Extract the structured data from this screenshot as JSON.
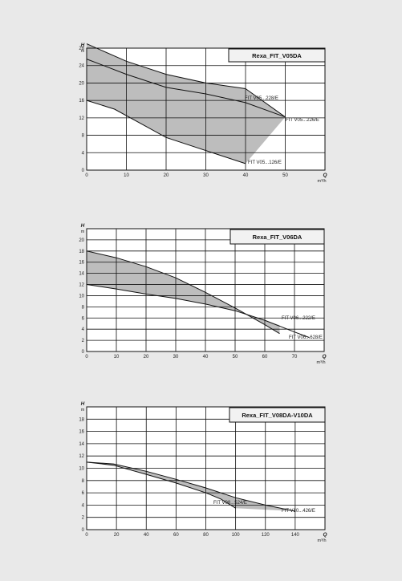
{
  "chart_data": [
    {
      "type": "area",
      "title": "Rexa_FIT_V05DA",
      "ylabel": "H",
      "yunit": "m",
      "xlabel": "Q",
      "xunit": "m³/h",
      "xlim": [
        0,
        60
      ],
      "ylim": [
        0,
        28
      ],
      "xticks": [
        0,
        10,
        20,
        30,
        40,
        50
      ],
      "yticks": [
        0,
        4,
        8,
        12,
        16,
        20,
        24,
        28
      ],
      "grid": true,
      "band": {
        "upper": [
          [
            0,
            29
          ],
          [
            10,
            25
          ],
          [
            20,
            22
          ],
          [
            30,
            20
          ],
          [
            40,
            18.7
          ]
        ],
        "upper_tail": [
          [
            40,
            18.7
          ],
          [
            50,
            12.2
          ]
        ],
        "lower": [
          [
            0,
            16
          ],
          [
            7,
            14
          ],
          [
            15,
            10
          ],
          [
            20,
            7.5
          ],
          [
            30,
            4.5
          ],
          [
            40,
            1.5
          ],
          [
            50,
            12.2
          ]
        ]
      },
      "series": [
        {
          "name": "FIT V05...228/E",
          "values": [
            [
              0,
              29
            ],
            [
              10,
              25
            ],
            [
              20,
              22
            ],
            [
              30,
              20
            ],
            [
              40,
              18.7
            ]
          ]
        },
        {
          "name": "FIT V05...226/E",
          "values": [
            [
              0,
              25.5
            ],
            [
              10,
              22
            ],
            [
              20,
              19
            ],
            [
              30,
              17.5
            ],
            [
              40,
              15.5
            ],
            [
              50,
              12.2
            ]
          ]
        },
        {
          "name": "FIT V05...126/E",
          "values": [
            [
              0,
              16
            ],
            [
              7,
              14
            ],
            [
              15,
              10
            ],
            [
              20,
              7.5
            ],
            [
              30,
              4.5
            ],
            [
              40,
              1.5
            ]
          ]
        }
      ]
    },
    {
      "type": "area",
      "title": "Rexa_FIT_V06DA",
      "ylabel": "H",
      "yunit": "m",
      "xlabel": "Q",
      "xunit": "m³/h",
      "xlim": [
        0,
        80
      ],
      "ylim": [
        0,
        22
      ],
      "xticks": [
        0,
        10,
        20,
        30,
        40,
        50,
        60,
        70
      ],
      "yticks": [
        0,
        2,
        4,
        6,
        8,
        10,
        12,
        14,
        16,
        18,
        20
      ],
      "grid": true,
      "band": {
        "upper": [
          [
            0,
            18
          ],
          [
            10,
            16.8
          ],
          [
            20,
            15.2
          ],
          [
            30,
            13.2
          ],
          [
            40,
            10.6
          ],
          [
            50,
            7.8
          ],
          [
            60,
            4.8
          ],
          [
            65,
            3.2
          ]
        ],
        "lower": [
          [
            0,
            12
          ],
          [
            10,
            11.2
          ],
          [
            20,
            10.3
          ],
          [
            30,
            9.5
          ],
          [
            40,
            8.5
          ],
          [
            50,
            7.3
          ],
          [
            60,
            5.6
          ],
          [
            65,
            4.7
          ]
        ]
      },
      "series": [
        {
          "name": "FIT V06...222/E",
          "values": [
            [
              0,
              18
            ],
            [
              10,
              16.8
            ],
            [
              20,
              15.2
            ],
            [
              30,
              13.2
            ],
            [
              40,
              10.6
            ],
            [
              50,
              7.8
            ],
            [
              60,
              4.8
            ],
            [
              65,
              3.2
            ]
          ]
        },
        {
          "name": "FIT V06...628/E",
          "values": [
            [
              0,
              12
            ],
            [
              10,
              11.2
            ],
            [
              20,
              10.3
            ],
            [
              30,
              9.5
            ],
            [
              40,
              8.5
            ],
            [
              50,
              7.3
            ],
            [
              60,
              5.6
            ],
            [
              70,
              3.5
            ],
            [
              75,
              2.5
            ]
          ]
        }
      ]
    },
    {
      "type": "area",
      "title": "Rexa_FIT_V08DA-V10DA",
      "ylabel": "H",
      "yunit": "m",
      "xlabel": "Q",
      "xunit": "m³/h",
      "xlim": [
        0,
        160
      ],
      "ylim": [
        0,
        20
      ],
      "xticks": [
        0,
        20,
        40,
        60,
        80,
        100,
        120,
        140
      ],
      "yticks": [
        0,
        2,
        4,
        6,
        8,
        10,
        12,
        14,
        16,
        18
      ],
      "grid": true,
      "band": {
        "upper": [
          [
            0,
            11
          ],
          [
            18,
            10.7
          ],
          [
            40,
            9.5
          ],
          [
            60,
            8.2
          ],
          [
            80,
            6.8
          ],
          [
            100,
            5.2
          ],
          [
            120,
            4.0
          ],
          [
            140,
            3.0
          ]
        ],
        "lower": [
          [
            0,
            11
          ],
          [
            18,
            10.5
          ],
          [
            40,
            9.0
          ],
          [
            60,
            7.6
          ],
          [
            80,
            6.0
          ],
          [
            90,
            5.0
          ],
          [
            100,
            3.5
          ]
        ]
      },
      "series": [
        {
          "name": "FIT V08...524/E",
          "values": [
            [
              0,
              11
            ],
            [
              18,
              10.5
            ],
            [
              40,
              9.0
            ],
            [
              60,
              7.6
            ],
            [
              80,
              6.0
            ],
            [
              90,
              5.0
            ],
            [
              100,
              3.5
            ]
          ]
        },
        {
          "name": "FIT V10...426/E",
          "values": [
            [
              0,
              11
            ],
            [
              18,
              10.7
            ],
            [
              40,
              9.5
            ],
            [
              60,
              8.2
            ],
            [
              80,
              6.8
            ],
            [
              100,
              5.2
            ],
            [
              120,
              4.0
            ],
            [
              140,
              3.0
            ]
          ]
        }
      ]
    }
  ]
}
